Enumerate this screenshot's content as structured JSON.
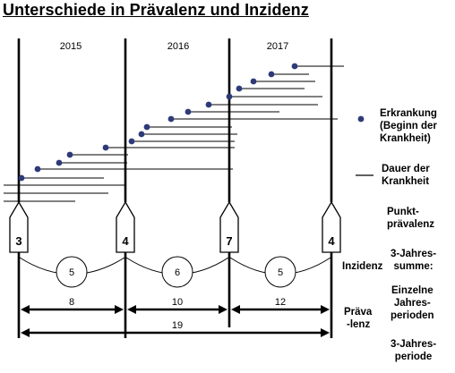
{
  "title": "Unterschiede in Prävalenz und Inzidenz",
  "years": [
    "2015",
    "2016",
    "2017"
  ],
  "point_prevalence": [
    "3",
    "4",
    "7",
    "4"
  ],
  "incidence": [
    "5",
    "6",
    "5"
  ],
  "period_prevalence": [
    "8",
    "10",
    "12"
  ],
  "total_prevalence": "19",
  "colors": {
    "dot": "#2e3a78",
    "line": "#000000"
  },
  "legend": {
    "onset": [
      "Erkrankung",
      "(Beginn der",
      "Krankheit)"
    ],
    "duration": [
      "Dauer der",
      "Krankheit"
    ],
    "point": [
      "Punkt-",
      "prävalenz"
    ],
    "sum": [
      "3-Jahres-",
      "summe:"
    ],
    "single": [
      "Einzelne",
      "Jahres-",
      "perioden"
    ],
    "period": [
      "3-Jahres-",
      "periode"
    ]
  },
  "labels": {
    "inzidenz": "Inzidenz",
    "praevalenz": [
      "Präva",
      "-lenz"
    ]
  }
}
